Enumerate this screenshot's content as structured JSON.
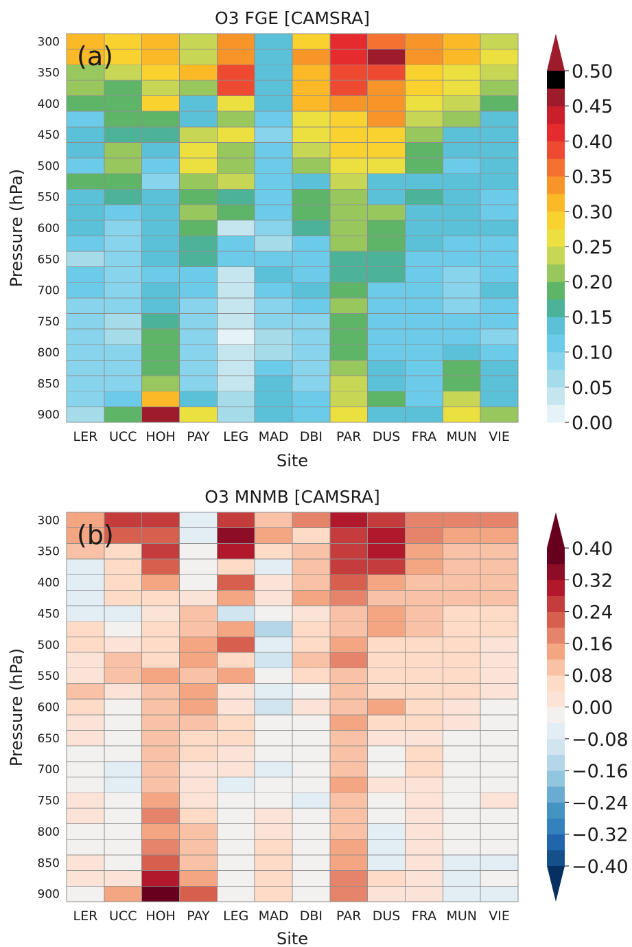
{
  "sites": [
    "LER",
    "UCC",
    "HOH",
    "PAY",
    "LEG",
    "MAD",
    "DBI",
    "PAR",
    "DUS",
    "FRA",
    "MUN",
    "VIE"
  ],
  "y_ticks": [
    "300",
    "350",
    "400",
    "450",
    "500",
    "550",
    "600",
    "650",
    "700",
    "750",
    "800",
    "850",
    "900"
  ],
  "chart_data": [
    {
      "type": "heatmap",
      "title": "O3 FGE [CAMSRA]",
      "panel_label": "(a)",
      "xlabel": "Site",
      "ylabel": "Pressure (hPa)",
      "x": [
        "LER",
        "UCC",
        "HOH",
        "PAY",
        "LEG",
        "MAD",
        "DBI",
        "PAR",
        "DUS",
        "FRA",
        "MUN",
        "VIE"
      ],
      "y": [
        300,
        325,
        350,
        375,
        400,
        425,
        450,
        475,
        500,
        525,
        550,
        575,
        600,
        625,
        650,
        675,
        700,
        725,
        750,
        775,
        800,
        825,
        850,
        875,
        900
      ],
      "colorbar": {
        "range": [
          0.0,
          0.5
        ],
        "step": 0.025,
        "ticks": [
          "0.50",
          "0.45",
          "0.40",
          "0.35",
          "0.30",
          "0.25",
          "0.20",
          "0.15",
          "0.10",
          "0.05",
          "0.00"
        ],
        "extend": "max",
        "colors": [
          "#e5f3f8",
          "#c6e6ef",
          "#a6dcea",
          "#88d4ec",
          "#6bcbe8",
          "#5bc1d9",
          "#4cb398",
          "#5eb467",
          "#98c85d",
          "#c7d755",
          "#ebe040",
          "#f9d230",
          "#fbb928",
          "#f89529",
          "#f57131",
          "#ee4a32",
          "#e62b2f",
          "#c91f2b",
          "#9e1b2b"
        ]
      },
      "values": [
        [
          0.31,
          0.29,
          0.3,
          0.24,
          0.34,
          0.13,
          0.28,
          0.4,
          0.35,
          0.34,
          0.3,
          0.24
        ],
        [
          0.31,
          0.29,
          0.3,
          0.24,
          0.34,
          0.13,
          0.34,
          0.41,
          0.45,
          0.34,
          0.3,
          0.26
        ],
        [
          0.21,
          0.24,
          0.29,
          0.31,
          0.38,
          0.13,
          0.31,
          0.38,
          0.39,
          0.29,
          0.26,
          0.24
        ],
        [
          0.21,
          0.18,
          0.24,
          0.21,
          0.38,
          0.13,
          0.31,
          0.38,
          0.34,
          0.29,
          0.26,
          0.21
        ],
        [
          0.18,
          0.18,
          0.29,
          0.13,
          0.26,
          0.13,
          0.31,
          0.34,
          0.34,
          0.26,
          0.24,
          0.18
        ],
        [
          0.11,
          0.18,
          0.18,
          0.13,
          0.21,
          0.11,
          0.26,
          0.29,
          0.34,
          0.24,
          0.21,
          0.13
        ],
        [
          0.13,
          0.16,
          0.16,
          0.24,
          0.26,
          0.09,
          0.26,
          0.29,
          0.29,
          0.21,
          0.13,
          0.13
        ],
        [
          0.13,
          0.21,
          0.13,
          0.26,
          0.21,
          0.11,
          0.24,
          0.29,
          0.29,
          0.18,
          0.13,
          0.13
        ],
        [
          0.11,
          0.21,
          0.11,
          0.26,
          0.21,
          0.11,
          0.21,
          0.26,
          0.26,
          0.18,
          0.11,
          0.13
        ],
        [
          0.18,
          0.18,
          0.09,
          0.21,
          0.24,
          0.11,
          0.13,
          0.24,
          0.13,
          0.13,
          0.13,
          0.13
        ],
        [
          0.13,
          0.16,
          0.13,
          0.18,
          0.16,
          0.11,
          0.18,
          0.21,
          0.13,
          0.16,
          0.13,
          0.11
        ],
        [
          0.13,
          0.11,
          0.13,
          0.21,
          0.18,
          0.11,
          0.18,
          0.21,
          0.21,
          0.13,
          0.13,
          0.11
        ],
        [
          0.13,
          0.09,
          0.13,
          0.18,
          0.04,
          0.09,
          0.16,
          0.21,
          0.18,
          0.13,
          0.13,
          0.13
        ],
        [
          0.11,
          0.09,
          0.13,
          0.16,
          0.11,
          0.06,
          0.11,
          0.21,
          0.18,
          0.13,
          0.11,
          0.11
        ],
        [
          0.06,
          0.09,
          0.13,
          0.16,
          0.11,
          0.11,
          0.11,
          0.16,
          0.16,
          0.11,
          0.11,
          0.11
        ],
        [
          0.11,
          0.09,
          0.11,
          0.11,
          0.04,
          0.13,
          0.11,
          0.16,
          0.16,
          0.11,
          0.09,
          0.11
        ],
        [
          0.11,
          0.09,
          0.13,
          0.11,
          0.04,
          0.11,
          0.13,
          0.18,
          0.11,
          0.11,
          0.09,
          0.13
        ],
        [
          0.09,
          0.09,
          0.13,
          0.09,
          0.04,
          0.09,
          0.11,
          0.21,
          0.11,
          0.11,
          0.09,
          0.11
        ],
        [
          0.09,
          0.06,
          0.16,
          0.09,
          0.04,
          0.09,
          0.09,
          0.18,
          0.11,
          0.11,
          0.11,
          0.11
        ],
        [
          0.09,
          0.06,
          0.18,
          0.09,
          0.02,
          0.06,
          0.09,
          0.18,
          0.11,
          0.11,
          0.11,
          0.09
        ],
        [
          0.09,
          0.09,
          0.18,
          0.09,
          0.04,
          0.06,
          0.09,
          0.18,
          0.11,
          0.11,
          0.13,
          0.11
        ],
        [
          0.09,
          0.09,
          0.18,
          0.09,
          0.04,
          0.11,
          0.09,
          0.21,
          0.13,
          0.11,
          0.18,
          0.13
        ],
        [
          0.09,
          0.09,
          0.21,
          0.09,
          0.04,
          0.13,
          0.09,
          0.24,
          0.13,
          0.11,
          0.18,
          0.13
        ],
        [
          0.09,
          0.11,
          0.31,
          0.13,
          0.06,
          0.13,
          0.11,
          0.24,
          0.18,
          0.11,
          0.24,
          0.13
        ],
        [
          0.06,
          0.18,
          0.45,
          0.26,
          0.06,
          0.13,
          0.11,
          0.26,
          0.13,
          0.13,
          0.26,
          0.21
        ]
      ]
    },
    {
      "type": "heatmap",
      "title": "O3 MNMB [CAMSRA]",
      "panel_label": "(b)",
      "xlabel": "Site",
      "ylabel": "Pressure (hPa)",
      "x": [
        "LER",
        "UCC",
        "HOH",
        "PAY",
        "LEG",
        "MAD",
        "DBI",
        "PAR",
        "DUS",
        "FRA",
        "MUN",
        "VIE"
      ],
      "y": [
        300,
        325,
        350,
        375,
        400,
        425,
        450,
        475,
        500,
        525,
        550,
        575,
        600,
        625,
        650,
        675,
        700,
        725,
        750,
        775,
        800,
        825,
        850,
        875,
        900
      ],
      "colorbar": {
        "range": [
          -0.4,
          0.4
        ],
        "step": 0.04,
        "ticks": [
          "0.40",
          "0.32",
          "0.24",
          "0.16",
          "0.08",
          "0.00",
          "−0.08",
          "−0.16",
          "−0.24",
          "−0.32",
          "−0.40"
        ],
        "extend": "both",
        "colors": [
          "#053061",
          "#16508a",
          "#2166ac",
          "#3381bd",
          "#4393c3",
          "#6aabd1",
          "#92c5de",
          "#b4d6e8",
          "#d1e5f0",
          "#e3eef4",
          "#f3f1ef",
          "#fbe4d7",
          "#fddbc7",
          "#f9c2a6",
          "#f4a582",
          "#e5836b",
          "#d6604d",
          "#c43c3c",
          "#b2182b",
          "#8c0d25",
          "#67001f"
        ]
      },
      "values": [
        [
          0.14,
          0.26,
          0.26,
          -0.08,
          0.26,
          0.1,
          0.18,
          0.3,
          0.26,
          0.18,
          0.18,
          0.18
        ],
        [
          0.14,
          0.22,
          0.22,
          -0.06,
          0.34,
          0.14,
          0.06,
          0.26,
          0.3,
          0.18,
          0.14,
          0.14
        ],
        [
          0.1,
          0.06,
          0.26,
          -0.02,
          0.3,
          0.06,
          0.1,
          0.26,
          0.3,
          0.14,
          0.1,
          0.1
        ],
        [
          -0.06,
          0.06,
          0.22,
          -0.02,
          0.06,
          -0.06,
          0.1,
          0.26,
          0.26,
          0.14,
          0.1,
          0.1
        ],
        [
          -0.06,
          0.06,
          0.14,
          -0.02,
          0.22,
          0.02,
          0.1,
          0.22,
          0.14,
          0.1,
          0.1,
          0.1
        ],
        [
          -0.06,
          0.06,
          0.06,
          0.02,
          0.14,
          0.02,
          0.14,
          0.18,
          0.1,
          0.1,
          0.1,
          0.1
        ],
        [
          -0.06,
          -0.06,
          0.02,
          0.1,
          -0.1,
          -0.02,
          0.02,
          0.1,
          0.14,
          0.1,
          0.06,
          0.06
        ],
        [
          0.06,
          -0.02,
          0.06,
          0.1,
          0.14,
          -0.14,
          0.06,
          0.1,
          0.14,
          0.1,
          0.06,
          0.06
        ],
        [
          0.06,
          0.02,
          0.06,
          0.14,
          0.22,
          -0.06,
          0.06,
          0.14,
          0.06,
          0.06,
          0.06,
          0.02
        ],
        [
          0.02,
          0.1,
          0.06,
          0.14,
          0.06,
          -0.1,
          0.1,
          0.18,
          0.06,
          0.06,
          0.06,
          0.02
        ],
        [
          0.02,
          0.1,
          0.14,
          0.1,
          0.14,
          -0.02,
          0.06,
          0.1,
          0.06,
          0.06,
          0.06,
          0.02
        ],
        [
          0.1,
          0.02,
          0.1,
          0.14,
          0.02,
          -0.06,
          -0.02,
          0.1,
          0.06,
          0.06,
          0.06,
          0.02
        ],
        [
          0.06,
          -0.02,
          0.1,
          0.14,
          0.02,
          -0.1,
          0.02,
          0.1,
          0.14,
          0.06,
          0.02,
          -0.02
        ],
        [
          0.02,
          -0.02,
          0.1,
          0.1,
          0.06,
          -0.02,
          -0.02,
          0.14,
          0.06,
          0.06,
          0.02,
          -0.02
        ],
        [
          0.02,
          -0.02,
          0.1,
          0.06,
          0.06,
          -0.02,
          -0.02,
          0.1,
          0.02,
          0.02,
          -0.02,
          -0.02
        ],
        [
          -0.02,
          -0.02,
          0.1,
          0.06,
          0.02,
          -0.02,
          -0.02,
          0.1,
          -0.02,
          0.06,
          -0.02,
          -0.02
        ],
        [
          -0.02,
          -0.06,
          0.1,
          0.02,
          0.02,
          -0.06,
          -0.02,
          0.1,
          -0.02,
          0.06,
          -0.02,
          -0.02
        ],
        [
          -0.02,
          -0.06,
          0.1,
          0.02,
          -0.06,
          -0.02,
          -0.02,
          0.14,
          0.02,
          0.02,
          -0.02,
          -0.02
        ],
        [
          0.02,
          -0.02,
          0.14,
          0.02,
          -0.02,
          -0.02,
          -0.06,
          0.1,
          -0.02,
          0.02,
          -0.02,
          0.02
        ],
        [
          0.02,
          -0.02,
          0.18,
          0.06,
          -0.02,
          0.02,
          -0.02,
          0.1,
          -0.02,
          0.02,
          -0.02,
          -0.02
        ],
        [
          -0.02,
          -0.02,
          0.14,
          0.1,
          -0.02,
          0.02,
          -0.02,
          0.1,
          -0.06,
          0.02,
          -0.02,
          -0.02
        ],
        [
          -0.02,
          -0.02,
          0.18,
          0.1,
          -0.02,
          0.06,
          -0.02,
          0.14,
          -0.06,
          0.02,
          -0.02,
          -0.02
        ],
        [
          0.02,
          -0.02,
          0.22,
          0.1,
          -0.02,
          0.06,
          -0.02,
          0.14,
          -0.06,
          0.02,
          -0.06,
          -0.06
        ],
        [
          0.02,
          0.02,
          0.3,
          0.14,
          -0.02,
          0.06,
          -0.02,
          0.18,
          0.06,
          0.02,
          -0.06,
          -0.02
        ],
        [
          -0.02,
          0.14,
          0.38,
          0.22,
          -0.02,
          0.06,
          -0.02,
          0.18,
          0.02,
          0.02,
          -0.06,
          -0.06
        ]
      ]
    }
  ]
}
